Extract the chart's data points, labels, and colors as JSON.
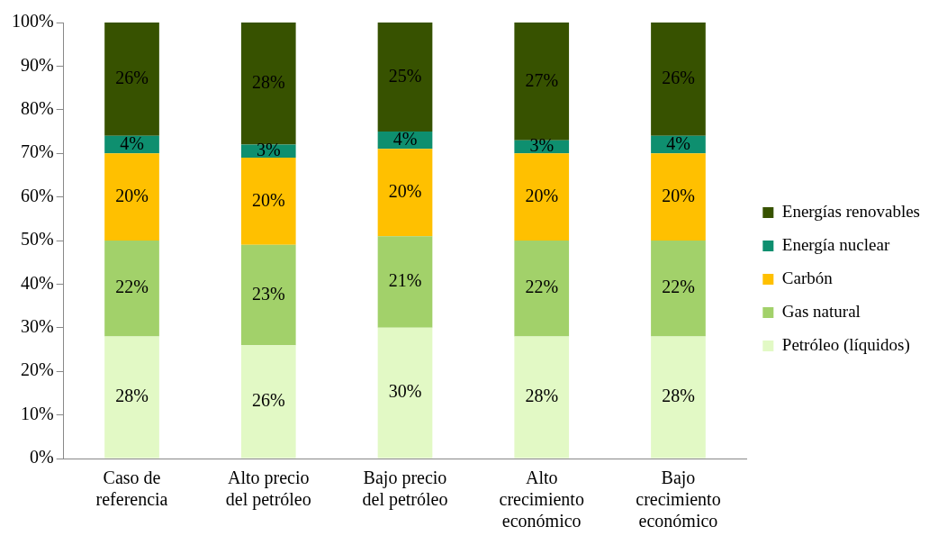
{
  "chart_data": {
    "type": "bar",
    "stacked": true,
    "categories": [
      "Caso de referencia",
      "Alto precio del petróleo",
      "Bajo precio del petróleo",
      "Alto crecimiento económico",
      "Bajo crecimiento económico"
    ],
    "series": [
      {
        "name": "Petróleo (líquidos)",
        "color": "#e2f9c5",
        "values": [
          28,
          26,
          30,
          28,
          28
        ],
        "value_labels": [
          "28%",
          "26%",
          "30%",
          "28%",
          "28%"
        ]
      },
      {
        "name": "Gas natural",
        "color": "#a2d16a",
        "values": [
          22,
          23,
          21,
          22,
          22
        ],
        "value_labels": [
          "22%",
          "23%",
          "21%",
          "22%",
          "22%"
        ]
      },
      {
        "name": "Carbón",
        "color": "#ffc000",
        "values": [
          20,
          20,
          20,
          20,
          20
        ],
        "value_labels": [
          "20%",
          "20%",
          "20%",
          "20%",
          "20%"
        ]
      },
      {
        "name": "Energía nuclear",
        "color": "#0e8f6f",
        "values": [
          4,
          3,
          4,
          3,
          4
        ],
        "value_labels": [
          "4%",
          "3%",
          "4%",
          "3%",
          "4%"
        ]
      },
      {
        "name": "Energías renovables",
        "color": "#375200",
        "values": [
          26,
          28,
          25,
          27,
          26
        ],
        "value_labels": [
          "26%",
          "28%",
          "25%",
          "27%",
          "26%"
        ]
      }
    ],
    "ylim": [
      0,
      100
    ],
    "yticks": [
      {
        "value": 0,
        "label": "0%"
      },
      {
        "value": 10,
        "label": "10%"
      },
      {
        "value": 20,
        "label": "20%"
      },
      {
        "value": 30,
        "label": "30%"
      },
      {
        "value": 40,
        "label": "40%"
      },
      {
        "value": 50,
        "label": "50%"
      },
      {
        "value": 60,
        "label": "60%"
      },
      {
        "value": 70,
        "label": "70%"
      },
      {
        "value": 80,
        "label": "80%"
      },
      {
        "value": 90,
        "label": "90%"
      },
      {
        "value": 100,
        "label": "100%"
      }
    ],
    "grid": false,
    "legend": "right"
  }
}
